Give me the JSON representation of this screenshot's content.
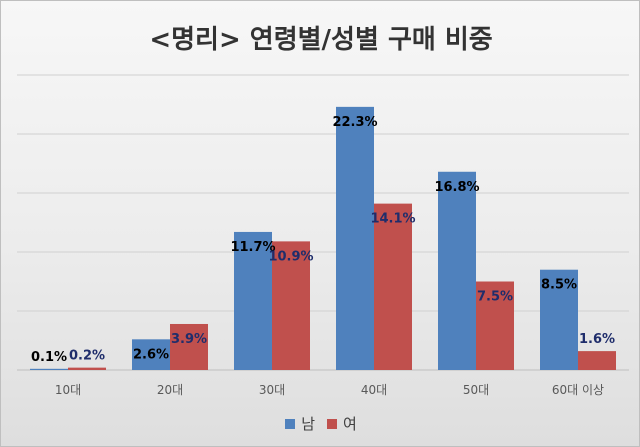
{
  "chart_data": {
    "type": "bar",
    "title": "<명리> 연령별/성별 구매 비중",
    "categories": [
      "10대",
      "20대",
      "30대",
      "40대",
      "50대",
      "60대 이상"
    ],
    "series": [
      {
        "name": "남",
        "color": "#4f81bd",
        "values": [
          0.1,
          2.6,
          11.7,
          22.3,
          16.8,
          8.5
        ],
        "labels": [
          "0.1%",
          "2.6%",
          "11.7%",
          "22.3%",
          "16.8%",
          "8.5%"
        ]
      },
      {
        "name": "여",
        "color": "#c0504d",
        "values": [
          0.2,
          3.9,
          10.9,
          14.1,
          7.5,
          1.6
        ],
        "labels": [
          "0.2%",
          "3.9%",
          "10.9%",
          "14.1%",
          "7.5%",
          "1.6%"
        ]
      }
    ],
    "ylim": [
      0,
      25
    ],
    "gridlines": true,
    "legend": "bottom"
  }
}
